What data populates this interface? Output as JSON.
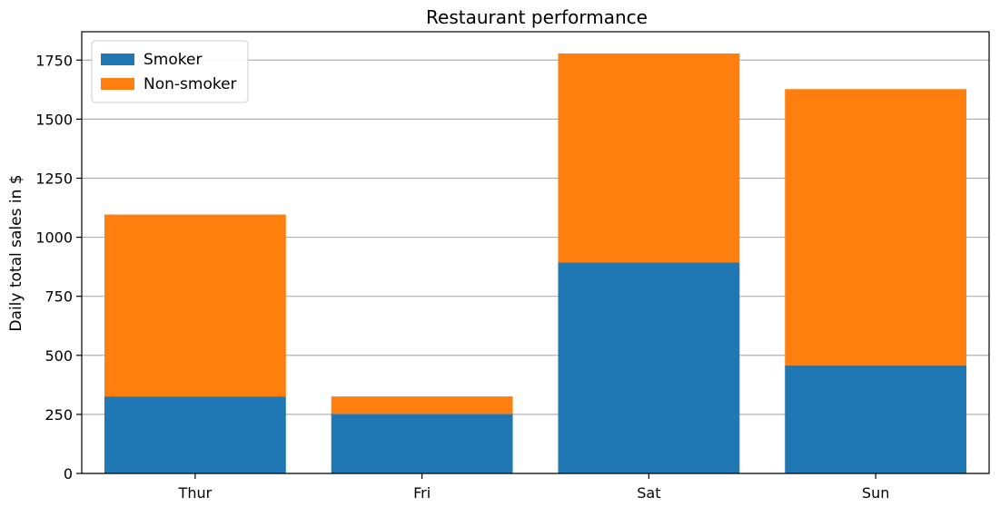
{
  "chart_data": {
    "type": "bar",
    "stacked": true,
    "title": "Restaurant performance",
    "xlabel": "",
    "ylabel": "Daily total sales in $",
    "categories": [
      "Thur",
      "Fri",
      "Sat",
      "Sun"
    ],
    "series": [
      {
        "name": "Smoker",
        "color": "#1f77b4",
        "values": [
          326,
          252,
          893,
          458
        ]
      },
      {
        "name": "Non-smoker",
        "color": "#ff7f0e",
        "values": [
          770,
          74,
          885,
          1169
        ]
      }
    ],
    "ylim": [
      0,
      1870
    ],
    "yticks": [
      0,
      250,
      500,
      750,
      1000,
      1250,
      1500,
      1750
    ],
    "grid": {
      "y": true,
      "x": false,
      "color": "#b0b0b0"
    },
    "legend": {
      "position": "top-left"
    }
  }
}
